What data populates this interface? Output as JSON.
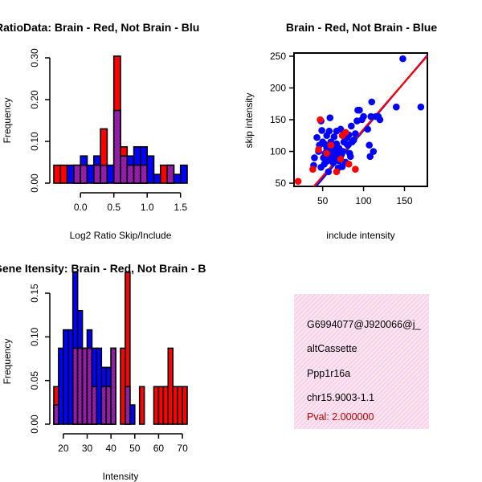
{
  "colors": {
    "red": "#ff0000",
    "blue": "#0000ff",
    "overlap": "#9a20b0",
    "info_bg": "#fbe3f1",
    "info_hatch": "#eeb6d6",
    "pval": "#b00000"
  },
  "chart_data": [
    {
      "id": "ratio",
      "type": "bar",
      "title": "RatioData: Brain - Red, Not Brain - Blu",
      "xlabel": "Log2 Ratio Skip/Include",
      "ylabel": "Frequency",
      "xlim": [
        -0.4,
        1.6
      ],
      "ylim": [
        0,
        0.3
      ],
      "xticks": [
        0.0,
        0.5,
        1.0,
        1.5
      ],
      "xtick_labels": [
        "0.0",
        "0.5",
        "1.0",
        "1.5"
      ],
      "yticks": [
        0.0,
        0.1,
        0.2,
        0.3
      ],
      "ytick_labels": [
        "0.00",
        "0.10",
        "0.20",
        "0.30"
      ],
      "bin_width": 0.1,
      "bins_start": -0.4,
      "series": [
        {
          "name": "Brain",
          "color": "red",
          "values": [
            0.043,
            0.043,
            0.0,
            0.043,
            0.043,
            0.0,
            0.043,
            0.13,
            0.0,
            0.304,
            0.087,
            0.043,
            0.043,
            0.043,
            0.0,
            0.0,
            0.043,
            0.043,
            0.0,
            0.0
          ]
        },
        {
          "name": "Not Brain",
          "color": "blue",
          "values": [
            0.0,
            0.0,
            0.043,
            0.043,
            0.065,
            0.043,
            0.065,
            0.043,
            0.043,
            0.174,
            0.065,
            0.065,
            0.087,
            0.087,
            0.065,
            0.021,
            0.0,
            0.043,
            0.021,
            0.043
          ]
        }
      ]
    },
    {
      "id": "scatter",
      "type": "scatter",
      "title": "Brain - Red, Not Brain - Blue",
      "xlabel": "include intensity",
      "ylabel": "skip intensity",
      "xlim": [
        15,
        178
      ],
      "ylim": [
        45,
        255
      ],
      "xticks": [
        50,
        100,
        150
      ],
      "xtick_labels": [
        "50",
        "100",
        "150"
      ],
      "yticks": [
        50,
        100,
        150,
        200,
        250
      ],
      "ytick_labels": [
        "50",
        "100",
        "150",
        "200",
        "250"
      ],
      "series": [
        {
          "name": "Not Brain",
          "color": "blue",
          "points": [
            [
              39,
              78
            ],
            [
              40,
              90
            ],
            [
              43,
              122
            ],
            [
              45,
              100
            ],
            [
              46,
              110
            ],
            [
              48,
              148
            ],
            [
              48,
              75
            ],
            [
              49,
              133
            ],
            [
              50,
              115
            ],
            [
              51,
              90
            ],
            [
              52,
              80
            ],
            [
              52,
              112
            ],
            [
              53,
              97
            ],
            [
              54,
              98
            ],
            [
              55,
              105
            ],
            [
              55,
              125
            ],
            [
              56,
              85
            ],
            [
              57,
              92
            ],
            [
              57,
              68
            ],
            [
              58,
              132
            ],
            [
              59,
              153
            ],
            [
              60,
              115
            ],
            [
              60,
              100
            ],
            [
              61,
              90
            ],
            [
              62,
              110
            ],
            [
              63,
              85
            ],
            [
              63,
              82
            ],
            [
              64,
              123
            ],
            [
              65,
              102
            ],
            [
              66,
              93
            ],
            [
              67,
              132
            ],
            [
              67,
              112
            ],
            [
              68,
              95
            ],
            [
              69,
              74
            ],
            [
              70,
              85
            ],
            [
              70,
              105
            ],
            [
              71,
              87
            ],
            [
              72,
              135
            ],
            [
              73,
              95
            ],
            [
              74,
              76
            ],
            [
              75,
              100
            ],
            [
              76,
              115
            ],
            [
              78,
              83
            ],
            [
              80,
              111
            ],
            [
              80,
              122
            ],
            [
              81,
              110
            ],
            [
              82,
              126
            ],
            [
              83,
              97
            ],
            [
              84,
              92
            ],
            [
              85,
              140
            ],
            [
              86,
              115
            ],
            [
              88,
              118
            ],
            [
              90,
              128
            ],
            [
              92,
              148
            ],
            [
              93,
              165
            ],
            [
              95,
              165
            ],
            [
              98,
              150
            ],
            [
              100,
              155
            ],
            [
              105,
              135
            ],
            [
              107,
              110
            ],
            [
              108,
              92
            ],
            [
              109,
              155
            ],
            [
              110,
              178
            ],
            [
              112,
              100
            ],
            [
              115,
              155
            ],
            [
              118,
              155
            ],
            [
              120,
              150
            ],
            [
              140,
              170
            ],
            [
              148,
              246
            ],
            [
              170,
              170
            ]
          ]
        },
        {
          "name": "Brain",
          "color": "red",
          "points": [
            [
              20,
              53
            ],
            [
              38,
              72
            ],
            [
              45,
              103
            ],
            [
              47,
              150
            ],
            [
              55,
              97
            ],
            [
              60,
              110
            ],
            [
              67,
              68
            ],
            [
              72,
              88
            ],
            [
              74,
              125
            ],
            [
              78,
              130
            ],
            [
              82,
              80
            ],
            [
              90,
              72
            ]
          ]
        }
      ],
      "fits": [
        {
          "name": "Not Brain",
          "color": "blue",
          "intercept": -19,
          "slope": 1.52
        },
        {
          "name": "Brain",
          "color": "red",
          "intercept": -13,
          "slope": 1.48
        }
      ]
    },
    {
      "id": "intensity",
      "type": "bar",
      "title": "Gene Itensity: Brain - Red, Not Brain - B",
      "xlabel": "Intensity",
      "ylabel": "Frequency",
      "xlim": [
        16,
        72
      ],
      "ylim": [
        0,
        0.15
      ],
      "xticks": [
        20,
        30,
        40,
        50,
        60,
        70
      ],
      "xtick_labels": [
        "20",
        "30",
        "40",
        "50",
        "60",
        "70"
      ],
      "yticks": [
        0.0,
        0.05,
        0.1,
        0.15
      ],
      "ytick_labels": [
        "0.00",
        "0.05",
        "0.10",
        "0.15"
      ],
      "bin_width": 2,
      "bins_start": 16,
      "series": [
        {
          "name": "Brain",
          "color": "red",
          "values": [
            0.043,
            0.0,
            0.0,
            0.0,
            0.087,
            0.087,
            0.087,
            0.087,
            0.043,
            0.0,
            0.043,
            0.043,
            0.087,
            0.0,
            0.087,
            0.174,
            0.0,
            0.0,
            0.043,
            0.0,
            0.0,
            0.043,
            0.043,
            0.043,
            0.087,
            0.043,
            0.043,
            0.043
          ]
        },
        {
          "name": "Not Brain",
          "color": "blue",
          "values": [
            0.022,
            0.087,
            0.108,
            0.108,
            0.174,
            0.13,
            0.087,
            0.108,
            0.087,
            0.087,
            0.065,
            0.065,
            0.087,
            0.0,
            0.0,
            0.043,
            0.022,
            0.0,
            0.0,
            0.0,
            0.0,
            0.0,
            0.0,
            0.0,
            0.0,
            0.0,
            0.0,
            0.0
          ]
        }
      ]
    }
  ],
  "info": {
    "id_line": "G6994077@J920066@j_",
    "event_type": "altCassette",
    "gene": "Ppp1r16a",
    "location": "chr15.9003-1.1",
    "pval": "Pval: 2.000000"
  }
}
